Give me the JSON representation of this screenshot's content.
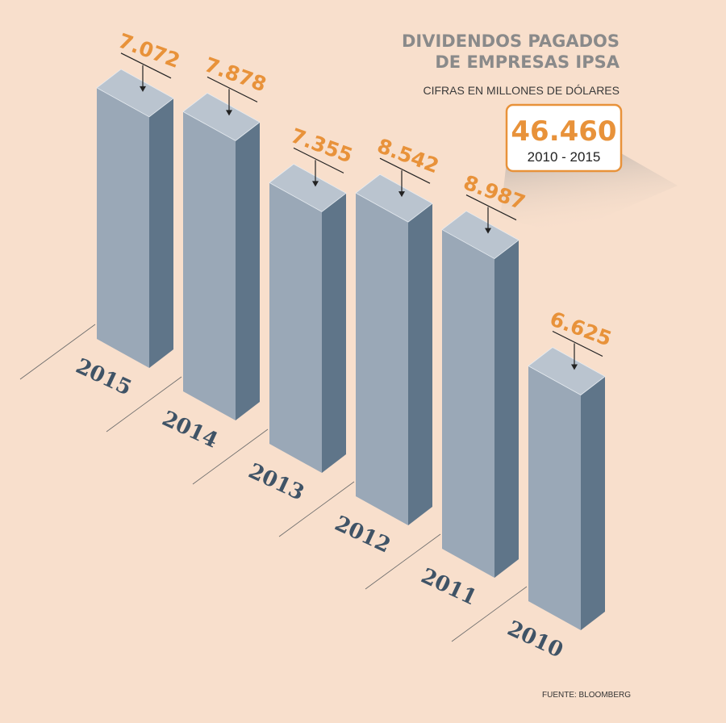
{
  "chart_data": {
    "type": "bar3d",
    "title": [
      "DIVIDENDOS PAGADOS",
      "DE EMPRESAS IPSA"
    ],
    "subtitle": "CIFRAS EN MILLONES DE DÓLARES",
    "categories": [
      "2015",
      "2014",
      "2013",
      "2012",
      "2011",
      "2010"
    ],
    "values": [
      7072,
      7878,
      7355,
      8542,
      8987,
      6625
    ],
    "value_labels": [
      "7.072",
      "7.878",
      "7.355",
      "8.542",
      "8.987",
      "6.625"
    ],
    "colors": {
      "front": "#9aa8b7",
      "side": "#5f7589",
      "top": "#bac4cf"
    },
    "total": {
      "value": 46460,
      "label": "46.460",
      "period": "2010 - 2015"
    },
    "source": "FUENTE: BLOOMBERG"
  }
}
